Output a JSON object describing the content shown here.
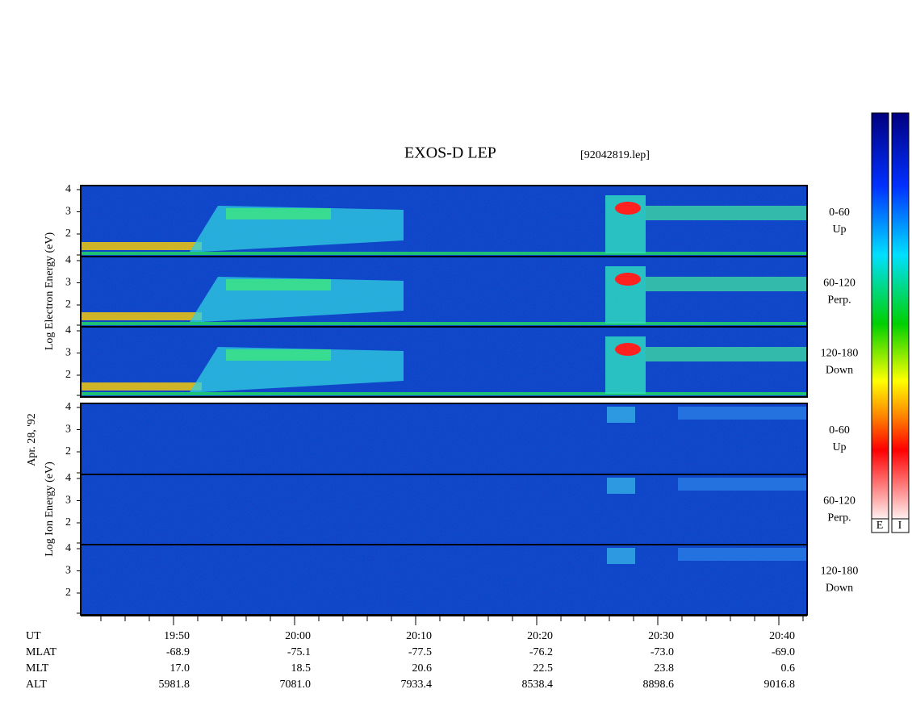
{
  "title": "EXOS-D LEP",
  "file": "[92042819.lep]",
  "date": "Apr. 28, '92",
  "electron": {
    "ylabel": "Log Electron Energy (eV)",
    "yticks": [
      "4",
      "3",
      "2"
    ],
    "panels": [
      {
        "range": "0-60",
        "dir": "Up"
      },
      {
        "range": "60-120",
        "dir": "Perp."
      },
      {
        "range": "120-180",
        "dir": "Down"
      }
    ]
  },
  "ion": {
    "ylabel": "Log Ion Energy (eV)",
    "yticks": [
      "4",
      "3",
      "2"
    ],
    "panels": [
      {
        "range": "0-60",
        "dir": "Up"
      },
      {
        "range": "60-120",
        "dir": "Perp."
      },
      {
        "range": "120-180",
        "dir": "Down"
      }
    ]
  },
  "xaxis": {
    "rows": [
      {
        "label": "UT",
        "values": [
          "19:50",
          "20:00",
          "20:10",
          "20:20",
          "20:30",
          "20:40"
        ]
      },
      {
        "label": "MLAT",
        "values": [
          "-68.9",
          "-75.1",
          "-77.5",
          "-76.2",
          "-73.0",
          "-69.0"
        ]
      },
      {
        "label": "MLT",
        "values": [
          "17.0",
          "18.5",
          "20.6",
          "22.5",
          "23.8",
          "0.6"
        ]
      },
      {
        "label": "ALT",
        "values": [
          "5981.8",
          "7081.0",
          "7933.4",
          "8538.4",
          "8898.6",
          "9016.8"
        ]
      }
    ]
  },
  "colorbars": [
    "E",
    "I"
  ]
}
